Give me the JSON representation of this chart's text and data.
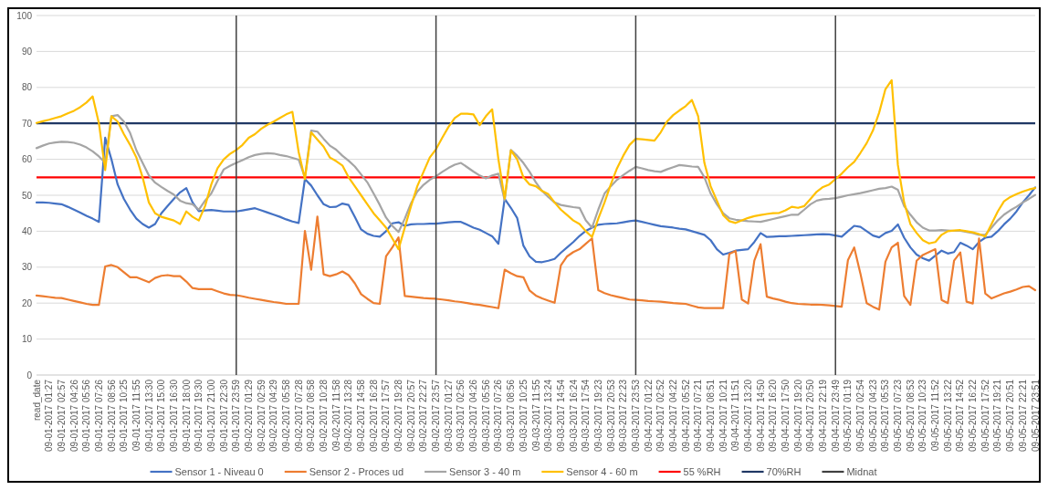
{
  "chart_data": {
    "type": "line",
    "categories": [
      "read_date",
      null,
      "09-01-2017 01:27",
      null,
      "09-01-2017 02:57",
      null,
      "09-01-2017 04:26",
      null,
      "09-01-2017 05:56",
      null,
      "09-01-2017 07:26",
      null,
      "09-01-2017 08:56",
      null,
      "09-01-2017 10:25",
      null,
      "09-01-2017 11:55",
      null,
      "09-01-2017 13:30",
      null,
      "09-01-2017 15:00",
      null,
      "09-01-2017 16:30",
      null,
      "09-01-2017 18:00",
      null,
      "09-01-2017 19:30",
      null,
      "09-01-2017 21:00",
      null,
      "09-01-2017 22:30",
      null,
      "09-01-2017 23:59",
      null,
      "09-02-2017 01:29",
      null,
      "09-02-2017 02:59",
      null,
      "09-02-2017 04:29",
      null,
      "09-02-2017 05:58",
      null,
      "09-02-2017 07:28",
      null,
      "09-02-2017 08:58",
      null,
      "09-02-2017 10:28",
      null,
      "09-02-2017 11:58",
      null,
      "09-02-2017 13:28",
      null,
      "09-02-2017 14:58",
      null,
      "09-02-2017 16:28",
      null,
      "09-02-2017 17:57",
      null,
      "09-02-2017 19:28",
      null,
      "09-02-2017 20:57",
      null,
      "09-02-2017 22:27",
      null,
      "09-02-2017 23:57",
      null,
      "09-03-2017 01:27",
      null,
      "09-03-2017 02:56",
      null,
      "09-03-2017 04:26",
      null,
      "09-03-2017 05:56",
      null,
      "09-03-2017 07:26",
      null,
      "09-03-2017 08:56",
      null,
      "09-03-2017 10:25",
      null,
      "09-03-2017 11:55",
      null,
      "09-03-2017 13:24",
      null,
      "09-03-2017 14:54",
      null,
      "09-03-2017 16:24",
      null,
      "09-03-2017 17:54",
      null,
      "09-03-2017 19:23",
      null,
      "09-03-2017 20:53",
      null,
      "09-03-2017 22:23",
      null,
      "09-03-2017 23:53",
      null,
      "09-04-2017 01:22",
      null,
      "09-04-2017 02:52",
      null,
      "09-04-2017 04:22",
      null,
      "09-04-2017 05:52",
      null,
      "09-04-2017 07:21",
      null,
      "09-04-2017 08:51",
      null,
      "09-04-2017 10:21",
      null,
      "09-04-2017 11:51",
      null,
      "09-04-2017 13:20",
      null,
      "09-04-2017 14:50",
      null,
      "09-04-2017 16:20",
      null,
      "09-04-2017 17:50",
      null,
      "09-04-2017 19:20",
      null,
      "09-04-2017 20:50",
      null,
      "09-04-2017 22:19",
      null,
      "09-04-2017 23:49",
      null,
      "09-05-2017 01:19",
      null,
      "09-05-2017 02:54",
      null,
      "09-05-2017 04:23",
      null,
      "09-05-2017 05:53",
      null,
      "09-05-2017 07:23",
      null,
      "09-05-2017 08:53",
      null,
      "09-05-2017 10:23",
      null,
      "09-05-2017 11:52",
      null,
      "09-05-2017 13:22",
      null,
      "09-05-2017 14:52",
      null,
      "09-05-2017 16:22",
      null,
      "09-05-2017 17:52",
      null,
      "09-05-2017 19:21",
      null,
      "09-05-2017 20:51",
      null,
      "09-05-2017 22:21",
      null,
      "09-05-2017 23:51"
    ],
    "series": [
      {
        "name": "Sensor 1 - Niveau 0",
        "color": "#4472c4",
        "values": [
          48,
          48,
          47.9,
          47.7,
          47.5,
          46.8,
          46,
          45.2,
          44.3,
          43.5,
          42.6,
          66,
          60,
          53,
          49,
          46,
          43.5,
          42,
          41,
          42,
          45,
          47,
          49,
          50.8,
          52,
          48,
          45.6,
          45.8,
          45.9,
          45.7,
          45.5,
          45.5,
          45.5,
          45.8,
          46.1,
          46.4,
          45.8,
          45.2,
          44.6,
          44,
          43.3,
          42.7,
          42.3,
          54.5,
          52.7,
          50,
          47.5,
          46.7,
          46.8,
          47.7,
          47.3,
          44,
          40.5,
          39.3,
          38.7,
          38.5,
          40,
          42.2,
          42.5,
          41.5,
          41.9,
          42,
          42,
          42.1,
          42.1,
          42.3,
          42.5,
          42.6,
          42.6,
          41.8,
          41,
          40.4,
          39.5,
          38.6,
          36.5,
          49,
          46.5,
          43.7,
          36,
          33,
          31.5,
          31.4,
          31.8,
          32.3,
          34,
          35.5,
          37,
          38.7,
          40.1,
          41,
          41.8,
          42,
          42.1,
          42.2,
          42.5,
          42.8,
          43,
          42.6,
          42.2,
          41.8,
          41.4,
          41.2,
          41,
          40.7,
          40.5,
          40,
          39.5,
          39,
          37.5,
          35,
          33.5,
          34,
          34.6,
          34.8,
          35,
          37,
          39.5,
          38.4,
          38.5,
          38.6,
          38.6,
          38.7,
          38.8,
          38.9,
          39,
          39.1,
          39.2,
          39.1,
          38.8,
          38.5,
          40,
          41.5,
          41.2,
          40,
          38.8,
          38.3,
          39.5,
          40.1,
          41.9,
          38.2,
          35.5,
          33.5,
          32.5,
          31.8,
          33.2,
          34.6,
          33.8,
          34.2,
          36.8,
          36,
          35,
          37,
          38.2,
          38.5,
          40,
          41.9,
          43.5,
          45.5,
          48,
          50,
          52.2
        ]
      },
      {
        "name": "Sensor 2 - Proces ud",
        "color": "#ed7d31",
        "values": [
          22.1,
          21.9,
          21.7,
          21.5,
          21.4,
          21,
          20.6,
          20.2,
          19.8,
          19.5,
          19.5,
          30.2,
          30.6,
          30,
          28.6,
          27.2,
          27.2,
          26.5,
          25.8,
          27,
          27.6,
          27.8,
          27.5,
          27.5,
          26,
          24.2,
          23.9,
          23.9,
          23.9,
          23.3,
          22.7,
          22.3,
          22.2,
          21.9,
          21.5,
          21.2,
          20.9,
          20.6,
          20.3,
          20.1,
          19.8,
          19.8,
          19.8,
          40.1,
          29.3,
          44.1,
          28,
          27.5,
          28,
          28.8,
          27.8,
          25.5,
          22.5,
          21.2,
          20,
          19.8,
          33,
          35.5,
          38.3,
          22,
          21.8,
          21.6,
          21.4,
          21.3,
          21.2,
          21,
          20.8,
          20.5,
          20.3,
          20,
          19.7,
          19.5,
          19.2,
          18.9,
          18.6,
          29.3,
          28.3,
          27.5,
          27.2,
          23.5,
          22.1,
          21.3,
          20.7,
          20.1,
          30.5,
          33,
          34.2,
          35,
          36.5,
          38,
          23.6,
          22.8,
          22.2,
          21.8,
          21.4,
          21,
          20.9,
          20.8,
          20.6,
          20.5,
          20.4,
          20.2,
          20,
          19.9,
          19.8,
          19.3,
          18.8,
          18.6,
          18.6,
          18.6,
          18.6,
          33.7,
          34.5,
          21,
          19.9,
          31.8,
          36.4,
          21.8,
          21.3,
          20.9,
          20.4,
          20,
          19.8,
          19.7,
          19.6,
          19.6,
          19.5,
          19.4,
          19.2,
          19,
          32,
          35.5,
          28.2,
          20,
          19,
          18.2,
          31.5,
          35.5,
          36.8,
          22,
          19.5,
          31.8,
          33.4,
          34.2,
          35,
          20.9,
          20,
          31.8,
          34.1,
          20.4,
          19.9,
          38,
          22.7,
          21.3,
          22,
          22.7,
          23.2,
          23.8,
          24.5,
          24.7,
          23.6
        ]
      },
      {
        "name": "Sensor 3 - 40 m",
        "color": "#a5a5a5",
        "values": [
          63.1,
          63.8,
          64.4,
          64.7,
          64.9,
          64.8,
          64.6,
          64.1,
          63.3,
          62.2,
          60.8,
          59,
          72,
          72.3,
          70.5,
          67.3,
          62.5,
          59,
          55.5,
          53.5,
          52.3,
          51.2,
          50.2,
          48.5,
          47.8,
          47.5,
          46,
          48.5,
          50.5,
          54,
          57.2,
          58.2,
          59,
          59.8,
          60.6,
          61.2,
          61.5,
          61.7,
          61.6,
          61.2,
          60.9,
          60.4,
          59.9,
          55,
          68,
          67.7,
          65.7,
          63.8,
          62.7,
          61,
          59.6,
          58,
          55.8,
          53.6,
          50.5,
          47.3,
          43.8,
          41.5,
          39.8,
          43.5,
          47.8,
          51,
          52.9,
          54.3,
          55.3,
          56.5,
          57.6,
          58.5,
          59,
          57.8,
          56.6,
          55.5,
          54.7,
          55.5,
          56,
          48.6,
          62.6,
          61,
          59,
          56.5,
          53.6,
          51.2,
          49.5,
          48,
          47.3,
          47,
          46.7,
          46.5,
          43,
          41,
          46,
          50.5,
          52.5,
          54.3,
          55.6,
          56.8,
          57.9,
          57.5,
          57,
          56.7,
          56.5,
          57.2,
          57.8,
          58.4,
          58.2,
          58,
          57.9,
          55,
          50.5,
          47.5,
          45,
          43.6,
          43.2,
          43,
          42.8,
          42.7,
          42.6,
          43,
          43.4,
          43.8,
          44.2,
          44.6,
          44.6,
          46,
          47.5,
          48.5,
          48.9,
          49,
          49.2,
          49.6,
          50,
          50.3,
          50.6,
          51,
          51.4,
          51.8,
          52,
          52.4,
          51.5,
          47,
          44.6,
          42.5,
          41,
          40.2,
          40.2,
          40.3,
          40.2,
          40.1,
          40.1,
          39.8,
          39.5,
          39,
          39,
          41,
          43,
          44.6,
          45.8,
          46.8,
          48,
          49,
          50.1
        ]
      },
      {
        "name": "Sensor 4 - 60 m",
        "color": "#ffc000",
        "values": [
          70.1,
          70.6,
          71,
          71.5,
          72,
          72.8,
          73.5,
          74.5,
          75.8,
          77.5,
          70,
          57,
          72,
          70.5,
          67,
          64,
          60.5,
          55,
          48,
          45,
          44,
          43.5,
          43,
          42,
          45.5,
          44,
          43,
          47,
          53,
          57.5,
          60,
          61.5,
          62.6,
          64,
          66,
          67,
          68.5,
          69.6,
          70.5,
          71.5,
          72.5,
          73.2,
          62,
          54.5,
          67.5,
          65.5,
          63.5,
          60.5,
          59.5,
          58.3,
          55,
          52.5,
          50,
          47.5,
          45,
          43,
          41,
          38,
          35,
          41,
          47,
          52.5,
          56.5,
          60.5,
          62.8,
          66,
          69,
          71.5,
          72.7,
          72.7,
          72.5,
          69.5,
          72,
          73.9,
          60,
          49.1,
          62.5,
          60,
          55,
          53,
          52.5,
          51.2,
          50.3,
          48,
          46,
          44.5,
          43,
          42,
          40,
          38.4,
          43.5,
          48,
          53,
          57.5,
          61,
          64,
          65.7,
          65.6,
          65.4,
          65.2,
          67.5,
          70.5,
          72.3,
          73.6,
          74.8,
          76.5,
          72,
          59,
          52.5,
          48.5,
          44.5,
          42.8,
          42.3,
          43,
          43.7,
          44.2,
          44.5,
          44.8,
          45,
          45.1,
          45.8,
          46.8,
          46.5,
          47,
          49,
          51,
          52.3,
          53,
          54.5,
          56,
          57.8,
          59.3,
          61.8,
          64.5,
          68,
          73,
          79.5,
          82,
          58.4,
          48,
          42,
          39.5,
          37.5,
          36.6,
          37,
          39,
          40,
          40.2,
          40.3,
          40,
          39.7,
          39.2,
          38.5,
          42,
          45.5,
          48.3,
          49.5,
          50.3,
          51,
          51.6,
          52
        ]
      }
    ],
    "ref_lines": [
      {
        "axis": "y",
        "value": 55,
        "label": "55 %RH",
        "color": "#ff0000"
      },
      {
        "axis": "y",
        "value": 70,
        "label": "70%RH",
        "color": "#203864"
      },
      {
        "axis": "x",
        "value": "09-01-2017 23:59",
        "label": "Midnat",
        "color": "#404040"
      },
      {
        "axis": "x",
        "value": "09-02-2017 23:57",
        "label": null,
        "color": "#404040"
      },
      {
        "axis": "x",
        "value": "09-03-2017 23:53",
        "label": null,
        "color": "#404040"
      },
      {
        "axis": "x",
        "value": "09-04-2017 23:49",
        "label": null,
        "color": "#404040"
      }
    ],
    "ylim": [
      0,
      100
    ],
    "yticks": [
      0,
      10,
      20,
      30,
      40,
      50,
      60,
      70,
      80,
      90,
      100
    ],
    "grid": "y",
    "legend": "bottom",
    "line_style": "solid",
    "marker": "none"
  }
}
